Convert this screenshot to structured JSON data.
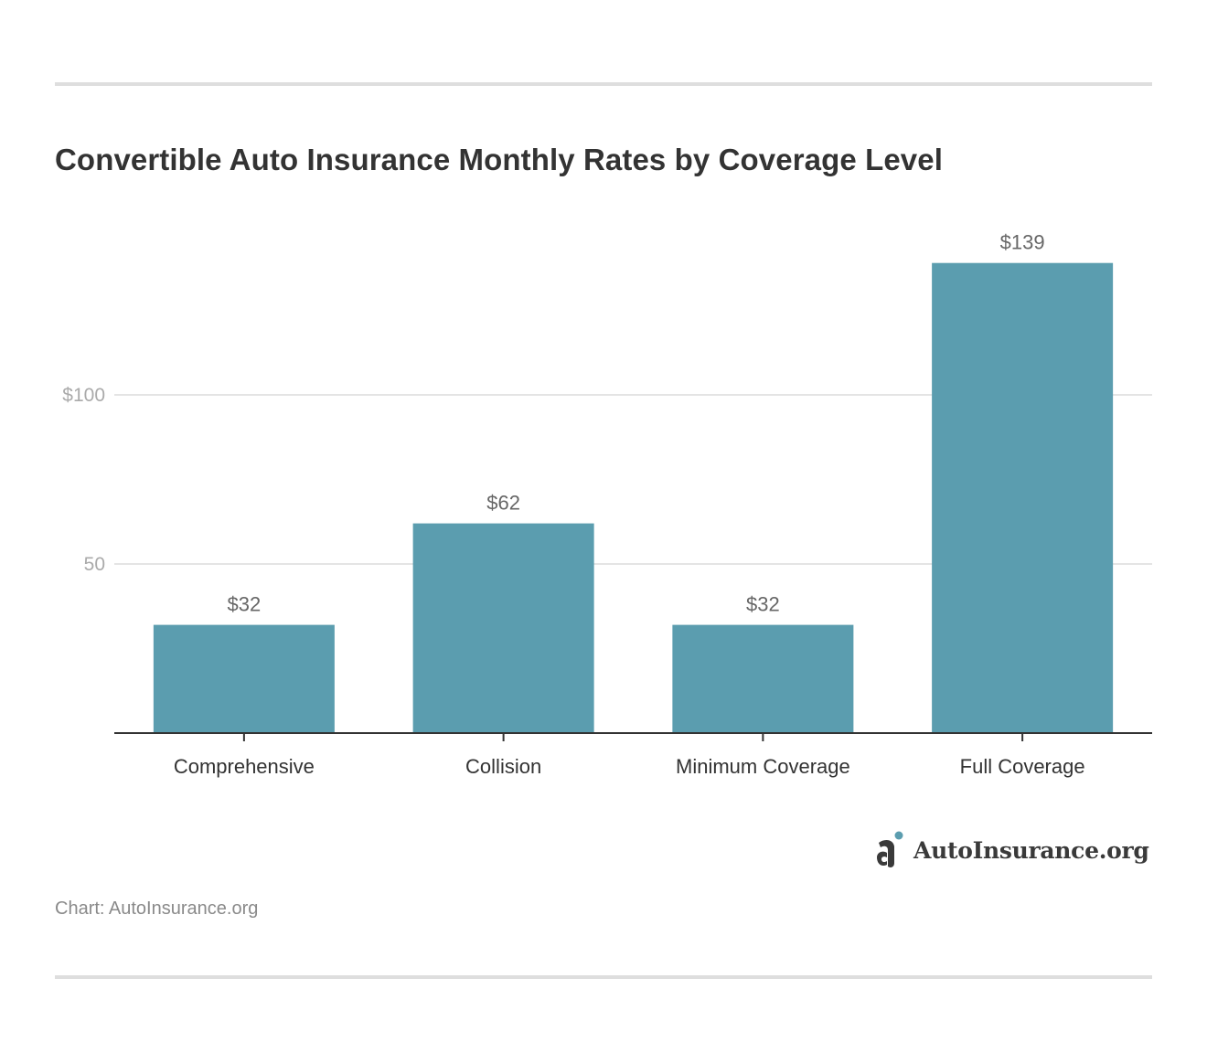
{
  "header": {
    "title": "Convertible Auto Insurance Monthly Rates by Coverage Level"
  },
  "chart_data": {
    "type": "bar",
    "title": "Convertible Auto Insurance Monthly Rates by Coverage Level",
    "categories": [
      "Comprehensive",
      "Collision",
      "Minimum Coverage",
      "Full Coverage"
    ],
    "values": [
      32,
      62,
      32,
      139
    ],
    "value_labels": [
      "$32",
      "$62",
      "$32",
      "$139"
    ],
    "y_ticks": [
      {
        "value": 50,
        "label": "50"
      },
      {
        "value": 100,
        "label": "$100"
      }
    ],
    "ylim": [
      0,
      150
    ],
    "xlabel": "",
    "ylabel": "",
    "grid": true,
    "bar_color": "#5b9daf"
  },
  "branding": {
    "logo_text": "AutoInsurance.org",
    "accent_color": "#5b9daf"
  },
  "footer": {
    "source": "Chart: AutoInsurance.org"
  },
  "colors": {
    "rule": "#dedede",
    "grid": "#e4e4e4",
    "axis": "#333333",
    "tick_label": "#aaaaaa",
    "value_label": "#666666",
    "category_label": "#333333"
  }
}
